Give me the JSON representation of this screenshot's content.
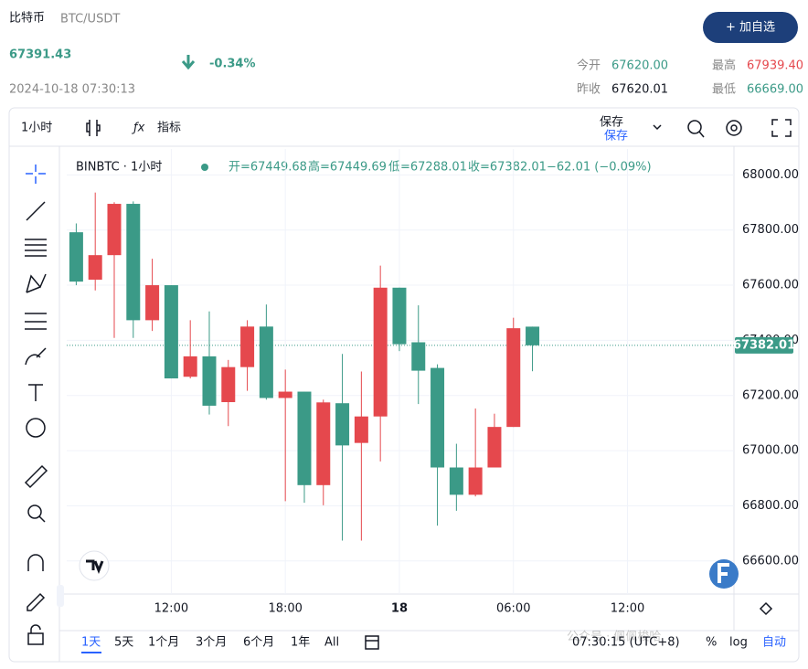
{
  "header": {
    "name": "比特币",
    "pair": "BTC/USDT",
    "price": "67391.43",
    "change": "-0.34%",
    "time": "2024-10-18 07:30:13",
    "button": "+ 加自选",
    "stats": [
      {
        "label": "今开",
        "value": "67620.00"
      },
      {
        "label": "最高",
        "value": "67939.40"
      },
      {
        "label": "昨收",
        "value": "67620.01"
      },
      {
        "label": "最低",
        "value": "66669.00"
      }
    ]
  },
  "toolbar": {
    "interval": "1小时",
    "indicators": "指标",
    "save": "保存",
    "save_sub": "保存"
  },
  "legend": {
    "symbol": "BINBTC · 1小时",
    "open": "开=67449.68",
    "high": "高=67449.69",
    "low": "低=67288.01",
    "close": "收=67382.01",
    "change": "−62.01 (−0.09%)"
  },
  "ranges": [
    "1天",
    "5天",
    "1个月",
    "3个月",
    "6个月",
    "1年",
    "All"
  ],
  "footer": {
    "clock": "07:30:15 (UTC+8)",
    "percent": "%",
    "log": "log",
    "auto": "自动"
  },
  "watermark": "公众号 · 佩佩梭哈",
  "chart_data": {
    "type": "candlestick",
    "x": [
      0,
      1,
      2,
      3,
      4,
      5,
      6,
      7,
      8,
      9,
      10,
      11,
      12,
      13,
      14,
      15,
      16,
      17,
      18,
      19,
      20,
      21,
      22,
      23,
      24
    ],
    "open": [
      67792,
      67620,
      67709,
      67895,
      67473,
      67600,
      67268,
      67342,
      67176,
      67303,
      67450,
      67191,
      67214,
      66875,
      67172,
      67028,
      67124,
      67591,
      67393,
      67300,
      66939,
      66840,
      66939,
      67086,
      67449.68
    ],
    "high": [
      67824,
      67936,
      67901,
      67904,
      67696,
      67600,
      67473,
      67505,
      67329,
      67473,
      67530,
      67294,
      67214,
      67185,
      67351,
      67287,
      67671,
      67591,
      67527,
      67313,
      67025,
      67153,
      67134,
      67482,
      67449.69
    ],
    "low": [
      67600,
      67581,
      67409,
      67409,
      67434,
      67262,
      67262,
      67131,
      67089,
      67217,
      67185,
      66817,
      66811,
      66802,
      66674,
      66674,
      66961,
      67361,
      67169,
      66728,
      66782,
      66834,
      66939,
      67086,
      67288.01
    ],
    "close": [
      67613,
      67709,
      67895,
      67473,
      67600,
      67262,
      67342,
      67163,
      67303,
      67450,
      67191,
      67214,
      66875,
      67175,
      67019,
      67124,
      67591,
      67386,
      67290,
      66939,
      66840,
      66939,
      67086,
      67444,
      67382.01
    ],
    "up_color": "#e5484d",
    "down_color": "#3b9a87",
    "grid": true,
    "xlim": [
      -0.5,
      34.6
    ],
    "xticks": [
      {
        "value": 5,
        "label": "12:00"
      },
      {
        "value": 11,
        "label": "18:00"
      },
      {
        "value": 17,
        "label": "18"
      },
      {
        "value": 23,
        "label": "06:00"
      },
      {
        "value": 29,
        "label": "12:00"
      }
    ],
    "ylim": [
      66480,
      68094
    ],
    "yticks": [
      {
        "value": 68000,
        "label": "68000.00"
      },
      {
        "value": 67800,
        "label": "67800.00"
      },
      {
        "value": 67600,
        "label": "67600.00"
      },
      {
        "value": 67400,
        "label": "67400.00"
      },
      {
        "value": 67200,
        "label": "67200.00"
      },
      {
        "value": 67000,
        "label": "67000.00"
      },
      {
        "value": 66800,
        "label": "66800.00"
      },
      {
        "value": 66600,
        "label": "66600.00"
      }
    ],
    "last_price": {
      "value": 67382.01,
      "label": "67382.01"
    }
  }
}
